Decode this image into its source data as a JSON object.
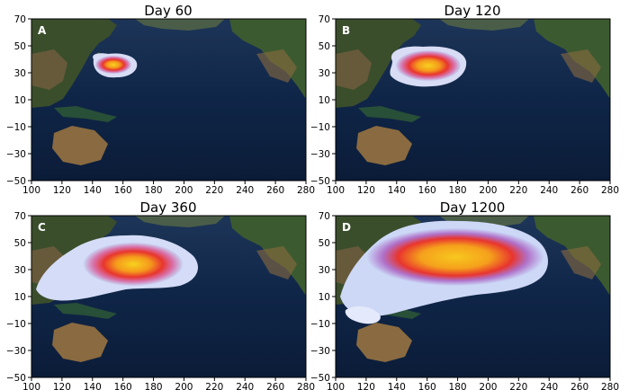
{
  "panels": [
    {
      "title": "Day 60",
      "letter": "A"
    },
    {
      "title": "Day 120",
      "letter": "B"
    },
    {
      "title": "Day 360",
      "letter": "C"
    },
    {
      "title": "Day 1200",
      "letter": "D"
    }
  ],
  "axes": {
    "x_ticks": [
      "100",
      "120",
      "140",
      "160",
      "180",
      "200",
      "220",
      "240",
      "260",
      "280"
    ],
    "y_ticks": [
      "70",
      "50",
      "30",
      "10",
      "−10",
      "−30",
      "−50"
    ]
  },
  "colors": {
    "ocean": "#0f2547",
    "land_green": "#3c5a30",
    "land_brown": "#8a6a40",
    "plume_low": "#c8d4f5",
    "plume_mid": "#e8443a",
    "plume_high": "#f5d020"
  }
}
